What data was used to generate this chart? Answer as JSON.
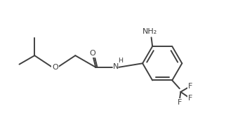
{
  "bg_color": "#ffffff",
  "line_color": "#404040",
  "text_color": "#404040",
  "figsize": [
    3.22,
    1.71
  ],
  "dpi": 100,
  "lw": 1.4,
  "fontsize": 8.0,
  "xlim": [
    0,
    10
  ],
  "ylim": [
    0,
    5.3
  ],
  "labels": {
    "O_ether": "O",
    "O_carbonyl": "O",
    "NH": "H",
    "NH2": "NH₂",
    "N_amide": "N",
    "F1": "F",
    "F2": "F",
    "F3": "F"
  }
}
